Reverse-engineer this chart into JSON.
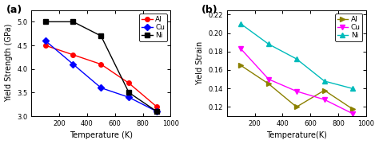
{
  "plot_a": {
    "title": "(a)",
    "xlabel": "Temperature (K)",
    "ylabel": "Yield Strength (GPa)",
    "xlim": [
      0,
      1000
    ],
    "ylim": [
      3.0,
      5.25
    ],
    "yticks": [
      3.0,
      3.5,
      4.0,
      4.5,
      5.0
    ],
    "xticks": [
      200,
      400,
      600,
      800,
      1000
    ],
    "series": [
      {
        "label": "Al",
        "color": "red",
        "marker": "o",
        "linestyle": "-",
        "x": [
          100,
          300,
          500,
          700,
          900
        ],
        "y": [
          4.5,
          4.3,
          4.1,
          3.7,
          3.2
        ]
      },
      {
        "label": "Cu",
        "color": "blue",
        "marker": "D",
        "linestyle": "-",
        "x": [
          100,
          300,
          500,
          700,
          900
        ],
        "y": [
          4.6,
          4.1,
          3.6,
          3.4,
          3.1
        ]
      },
      {
        "label": "Ni",
        "color": "black",
        "marker": "s",
        "linestyle": "-",
        "x": [
          100,
          300,
          500,
          700,
          900
        ],
        "y": [
          5.0,
          5.0,
          4.7,
          3.5,
          3.1
        ]
      }
    ]
  },
  "plot_b": {
    "title": "(b)",
    "xlabel": "Temperature(K)",
    "ylabel": "Yield Strain",
    "xlim": [
      0,
      1000
    ],
    "ylim": [
      0.11,
      0.225
    ],
    "yticks": [
      0.12,
      0.14,
      0.16,
      0.18,
      0.2,
      0.22
    ],
    "xticks": [
      200,
      400,
      600,
      800,
      1000
    ],
    "series": [
      {
        "label": "Al",
        "color": "#8B8000",
        "marker": ">",
        "linestyle": "-",
        "x": [
          100,
          300,
          500,
          700,
          900
        ],
        "y": [
          0.165,
          0.145,
          0.12,
          0.138,
          0.118
        ]
      },
      {
        "label": "Cu",
        "color": "#FF00FF",
        "marker": "v",
        "linestyle": "-",
        "x": [
          100,
          300,
          500,
          700,
          900
        ],
        "y": [
          0.183,
          0.15,
          0.137,
          0.128,
          0.113
        ]
      },
      {
        "label": "Ni",
        "color": "#00BBBB",
        "marker": "^",
        "linestyle": "-",
        "x": [
          100,
          300,
          500,
          700,
          900
        ],
        "y": [
          0.21,
          0.188,
          0.172,
          0.148,
          0.14
        ]
      }
    ]
  },
  "background_color": "#ffffff",
  "legend_fontsize": 6.5,
  "tick_fontsize": 6.0,
  "label_fontsize": 7.0
}
